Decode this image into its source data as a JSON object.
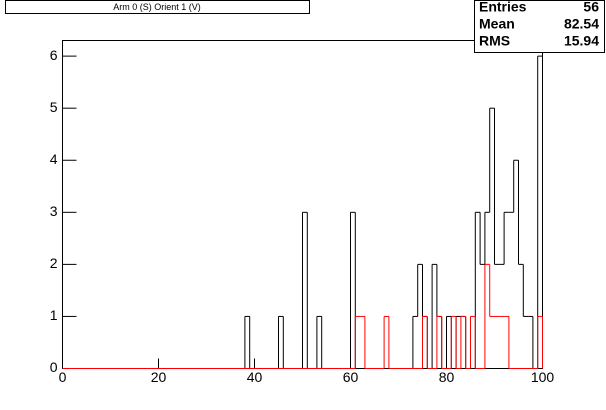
{
  "chart_data": {
    "type": "histogram",
    "title": "Arm 0 (S) Orient 1 (V)",
    "bins": [
      0,
      1,
      2,
      3,
      4,
      5,
      6,
      7,
      8,
      9,
      10,
      11,
      12,
      13,
      14,
      15,
      16,
      17,
      18,
      19,
      20,
      21,
      22,
      23,
      24,
      25,
      26,
      27,
      28,
      29,
      30,
      31,
      32,
      33,
      34,
      35,
      36,
      37,
      38,
      39,
      40,
      41,
      42,
      43,
      44,
      45,
      46,
      47,
      48,
      49,
      50,
      51,
      52,
      53,
      54,
      55,
      56,
      57,
      58,
      59,
      60,
      61,
      62,
      63,
      64,
      65,
      66,
      67,
      68,
      69,
      70,
      71,
      72,
      73,
      74,
      75,
      76,
      77,
      78,
      79,
      80,
      81,
      82,
      83,
      84,
      85,
      86,
      87,
      88,
      89,
      90,
      91,
      92,
      93,
      94,
      95,
      96,
      97,
      98,
      99,
      100
    ],
    "series": [
      {
        "color": "#000000",
        "values": [
          0,
          0,
          0,
          0,
          0,
          0,
          0,
          0,
          0,
          0,
          0,
          0,
          0,
          0,
          0,
          0,
          0,
          0,
          0,
          0,
          0,
          0,
          0,
          0,
          0,
          0,
          0,
          0,
          0,
          0,
          0,
          0,
          0,
          0,
          0,
          0,
          0,
          0,
          1,
          0,
          0,
          0,
          0,
          0,
          0,
          1,
          0,
          0,
          0,
          0,
          3,
          0,
          0,
          1,
          0,
          0,
          0,
          0,
          0,
          0,
          3,
          0,
          0,
          0,
          0,
          0,
          0,
          0,
          0,
          0,
          0,
          0,
          0,
          1,
          2,
          1,
          0,
          2,
          1,
          0,
          1,
          0,
          1,
          1,
          0,
          0,
          3,
          2,
          3,
          5,
          2,
          2,
          3,
          3,
          4,
          2,
          1,
          1,
          0,
          6
        ]
      },
      {
        "color": "#ff0000",
        "values": [
          0,
          0,
          0,
          0,
          0,
          0,
          0,
          0,
          0,
          0,
          0,
          0,
          0,
          0,
          0,
          0,
          0,
          0,
          0,
          0,
          0,
          0,
          0,
          0,
          0,
          0,
          0,
          0,
          0,
          0,
          0,
          0,
          0,
          0,
          0,
          0,
          0,
          0,
          0,
          0,
          0,
          0,
          0,
          0,
          0,
          0,
          0,
          0,
          0,
          0,
          0,
          0,
          0,
          0,
          0,
          0,
          0,
          0,
          0,
          0,
          0,
          1,
          1,
          0,
          0,
          0,
          0,
          1,
          0,
          0,
          0,
          0,
          0,
          0,
          0,
          1,
          0,
          0,
          1,
          0,
          0,
          1,
          0,
          1,
          0,
          1,
          0,
          0,
          2,
          1,
          1,
          1,
          1,
          0,
          0,
          0,
          0,
          0,
          0,
          1
        ]
      }
    ],
    "xlim": [
      0,
      100
    ],
    "xticks": [
      0,
      20,
      40,
      60,
      80,
      100
    ],
    "ylim": [
      0,
      6.3
    ],
    "yticks": [
      0,
      1,
      2,
      3,
      4,
      5,
      6
    ],
    "stats": [
      {
        "label": "Entries",
        "value": 56
      },
      {
        "label": "Mean",
        "value": 82.54
      },
      {
        "label": "RMS",
        "value": 15.94
      }
    ]
  }
}
